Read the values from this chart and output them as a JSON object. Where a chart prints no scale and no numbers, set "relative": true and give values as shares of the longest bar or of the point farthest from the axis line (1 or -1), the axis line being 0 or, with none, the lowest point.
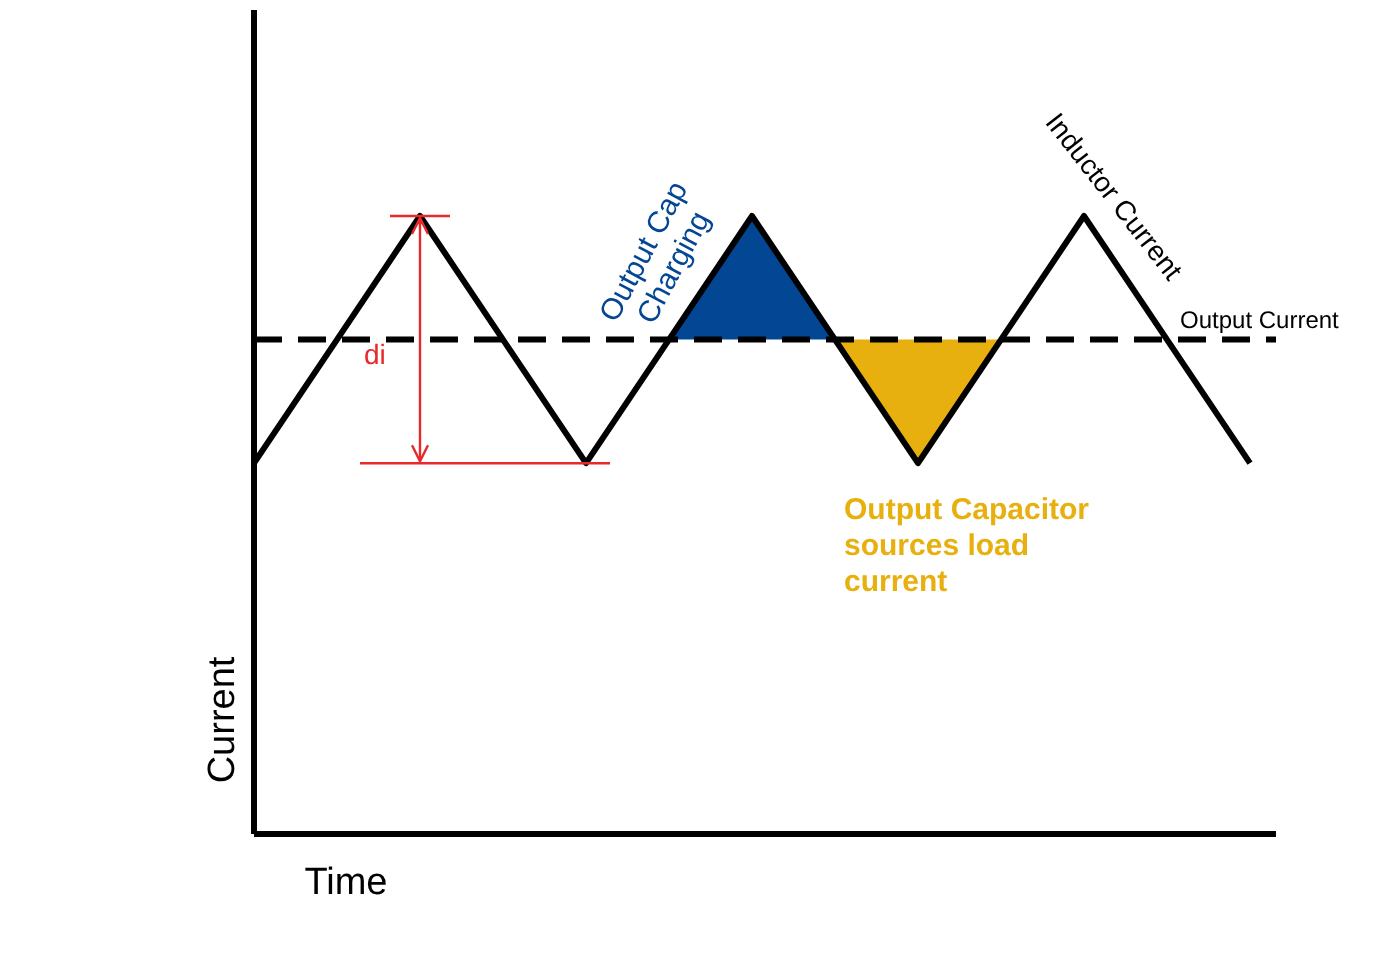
{
  "chart_data": {
    "type": "line",
    "relative": true,
    "xlabel": "Time",
    "ylabel": "Current",
    "categories": [
      null,
      null,
      null,
      null,
      null,
      null,
      null,
      null,
      null,
      null,
      null,
      null,
      null
    ],
    "series": [
      {
        "name": "Inductor Current",
        "color": "#000000",
        "values": [
          0.6,
          0.8,
          1,
          0.8,
          0.6,
          0.8,
          1,
          0.8,
          0.6,
          0.8,
          1,
          0.8,
          0.6
        ]
      },
      {
        "type": "area",
        "color": "#034694",
        "values": [
          null,
          null,
          null,
          null,
          null,
          0.8,
          1,
          0.8,
          null,
          null,
          null,
          null,
          null
        ]
      },
      {
        "type": "area",
        "color": "#e8b00f",
        "values": [
          null,
          null,
          null,
          null,
          null,
          null,
          null,
          0.8,
          0.6,
          0.8,
          null,
          null,
          null
        ]
      }
    ],
    "ref_lines": [
      {
        "axis": "y",
        "value": 0.8,
        "label": "Output Current",
        "line_style": "dashed",
        "color": "#000000"
      }
    ],
    "annotations": [
      "Output Cap Charging",
      "Output Capacitor sources load current",
      "di"
    ]
  }
}
